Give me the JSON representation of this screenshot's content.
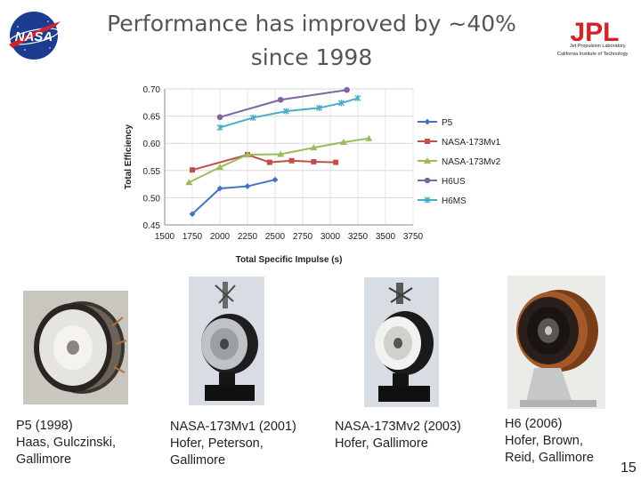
{
  "slide": {
    "title_line1": "Performance has improved by ~40%",
    "title_line2": "since 1998",
    "page_number": "15"
  },
  "logos": {
    "nasa": "NASA",
    "jpl": "JPL",
    "jpl_line1": "Jet Propulsion Laboratory",
    "jpl_line2": "California Institute of Technology"
  },
  "chart_data": {
    "type": "line",
    "title": "",
    "xlabel": "Total Specific Impulse (s)",
    "ylabel": "Total Efficiency",
    "xlim": [
      1500,
      3750
    ],
    "ylim": [
      0.45,
      0.7
    ],
    "x_ticks": [
      "1500",
      "1750",
      "2000",
      "2250",
      "2500",
      "2750",
      "3000",
      "3250",
      "3500",
      "3750"
    ],
    "y_ticks": [
      "0.45",
      "0.50",
      "0.55",
      "0.60",
      "0.65",
      "0.70"
    ],
    "grid": true,
    "legend_position": "right",
    "series": [
      {
        "name": "P5",
        "color": "#4472c4",
        "marker": "diamond",
        "x": [
          1750,
          2000,
          2250,
          2500
        ],
        "y": [
          0.47,
          0.517,
          0.521,
          0.533
        ]
      },
      {
        "name": "NASA-173Mv1",
        "color": "#c0504d",
        "marker": "square",
        "x": [
          1750,
          2250,
          2450,
          2650,
          2850,
          3050
        ],
        "y": [
          0.551,
          0.579,
          0.565,
          0.568,
          0.566,
          0.565
        ]
      },
      {
        "name": "NASA-173Mv2",
        "color": "#9bbb59",
        "marker": "triangle",
        "x": [
          1720,
          2000,
          2250,
          2550,
          2850,
          3120,
          3350
        ],
        "y": [
          0.528,
          0.556,
          0.579,
          0.58,
          0.592,
          0.602,
          0.609
        ]
      },
      {
        "name": "H6US",
        "color": "#8064a2",
        "marker": "circle",
        "x": [
          2000,
          2550,
          3150
        ],
        "y": [
          0.648,
          0.68,
          0.698
        ]
      },
      {
        "name": "H6MS",
        "color": "#4bacc6",
        "marker": "x",
        "x": [
          2000,
          2300,
          2600,
          2900,
          3100,
          3250
        ],
        "y": [
          0.629,
          0.647,
          0.659,
          0.665,
          0.674,
          0.683
        ]
      }
    ]
  },
  "thrusters": [
    {
      "line1": "P5 (1998)",
      "line2": "Haas, Gulczinski,",
      "line3": "Gallimore"
    },
    {
      "line1": "NASA-173Mv1 (2001)",
      "line2": "Hofer, Peterson,",
      "line3": "Gallimore"
    },
    {
      "line1": "NASA-173Mv2 (2003)",
      "line2": "Hofer, Gallimore",
      "line3": ""
    },
    {
      "line1": "H6 (2006)",
      "line2": "Hofer, Brown,",
      "line3": "Reid, Gallimore"
    }
  ]
}
